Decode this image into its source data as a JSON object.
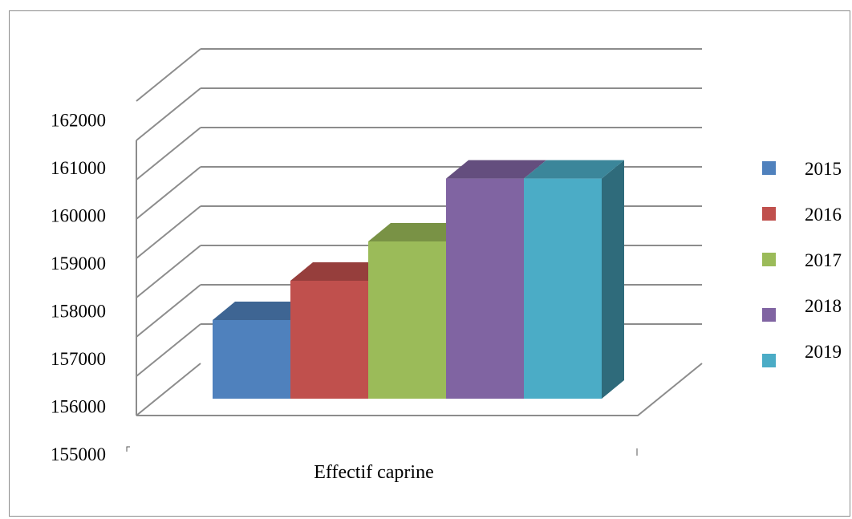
{
  "chart_data": {
    "type": "bar",
    "style": "3d-clustered-column",
    "title": "",
    "xlabel": "Effectif caprine",
    "ylabel": "",
    "categories": [
      "Effectif caprine"
    ],
    "series": [
      {
        "name": "2015",
        "values": [
          158000
        ],
        "color": "#4f81bd"
      },
      {
        "name": "2016",
        "values": [
          159000
        ],
        "color": "#c0504d"
      },
      {
        "name": "2017",
        "values": [
          160000
        ],
        "color": "#9bbb59"
      },
      {
        "name": "2018",
        "values": [
          161600
        ],
        "color": "#8064a2"
      },
      {
        "name": "2019",
        "values": [
          161600
        ],
        "color": "#4bacc6"
      }
    ],
    "ylim": [
      155000,
      162000
    ],
    "yticks": [
      "162000",
      "161000",
      "160000",
      "159000",
      "158000",
      "157000",
      "156000",
      "155000"
    ],
    "grid": true,
    "legend": "right"
  }
}
